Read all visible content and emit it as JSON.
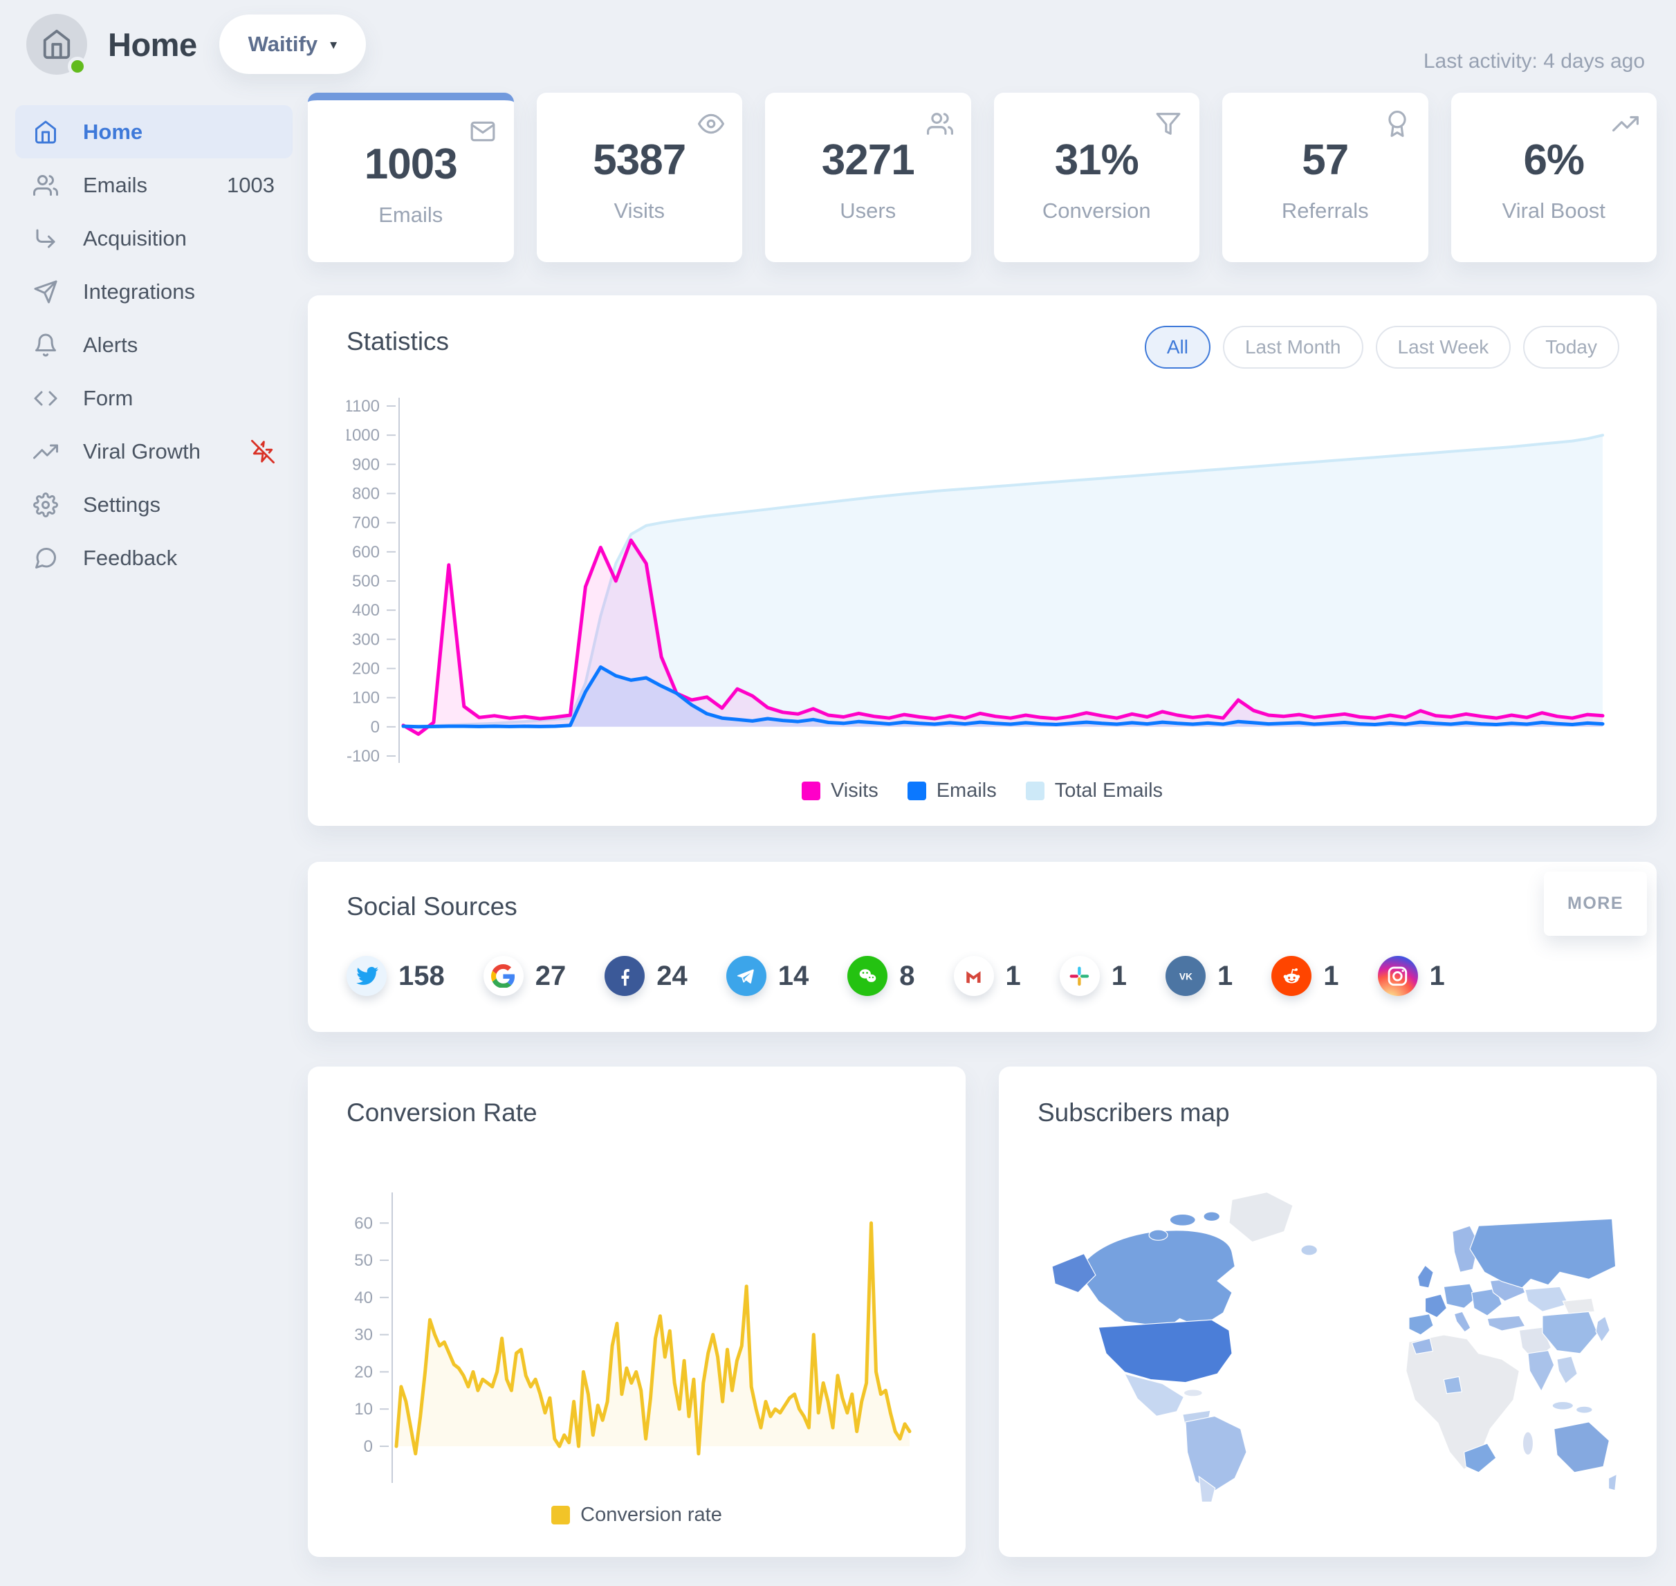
{
  "header": {
    "title": "Home",
    "workspace": "Waitify",
    "caret": "▾",
    "last_activity": "Last activity: 4 days ago"
  },
  "sidebar": {
    "items": [
      {
        "id": "home",
        "icon": "home",
        "label": "Home",
        "active": true
      },
      {
        "id": "emails",
        "icon": "users",
        "label": "Emails",
        "badge": "1003"
      },
      {
        "id": "acquisition",
        "icon": "corner-down-right",
        "label": "Acquisition"
      },
      {
        "id": "integrations",
        "icon": "send",
        "label": "Integrations"
      },
      {
        "id": "alerts",
        "icon": "bell",
        "label": "Alerts"
      },
      {
        "id": "form",
        "icon": "code",
        "label": "Form"
      },
      {
        "id": "viral-growth",
        "icon": "trending-up",
        "label": "Viral Growth",
        "alert_icon": "zap-off"
      },
      {
        "id": "settings",
        "icon": "settings",
        "label": "Settings"
      },
      {
        "id": "feedback",
        "icon": "message-circle",
        "label": "Feedback"
      }
    ]
  },
  "stat_cards": [
    {
      "id": "emails",
      "value": "1003",
      "label": "Emails",
      "icon": "mail",
      "highlighted": true
    },
    {
      "id": "visits",
      "value": "5387",
      "label": "Visits",
      "icon": "eye"
    },
    {
      "id": "users",
      "value": "3271",
      "label": "Users",
      "icon": "users"
    },
    {
      "id": "conversion",
      "value": "31%",
      "label": "Conversion",
      "icon": "filter"
    },
    {
      "id": "referrals",
      "value": "57",
      "label": "Referrals",
      "icon": "award"
    },
    {
      "id": "viral-boost",
      "value": "6%",
      "label": "Viral Boost",
      "icon": "trending-up"
    }
  ],
  "statistics": {
    "title": "Statistics",
    "filters": [
      {
        "label": "All",
        "active": true
      },
      {
        "label": "Last Month"
      },
      {
        "label": "Last Week"
      },
      {
        "label": "Today"
      }
    ]
  },
  "chart_data": [
    {
      "type": "area",
      "title": "Statistics",
      "xlabel": "",
      "ylabel": "",
      "ylim": [
        -100,
        1100
      ],
      "yticks": [
        1100,
        1000,
        900,
        800,
        700,
        600,
        500,
        400,
        300,
        200,
        100,
        0,
        -100
      ],
      "grid": false,
      "legend_position": "bottom",
      "series": [
        {
          "name": "Visits",
          "color": "#ff00c8",
          "fill": "rgba(255,0,200,0.09)",
          "z": 1,
          "width": 5,
          "values": [
            5,
            -25,
            15,
            555,
            70,
            32,
            38,
            30,
            35,
            28,
            33,
            40,
            480,
            615,
            500,
            640,
            560,
            240,
            115,
            92,
            102,
            64,
            130,
            106,
            66,
            50,
            44,
            62,
            40,
            34,
            46,
            36,
            30,
            42,
            34,
            28,
            38,
            30,
            46,
            36,
            30,
            40,
            32,
            28,
            36,
            48,
            38,
            30,
            44,
            34,
            52,
            40,
            32,
            38,
            30,
            92,
            56,
            40,
            36,
            42,
            32,
            38,
            44,
            34,
            30,
            40,
            32,
            55,
            38,
            34,
            44,
            36,
            30,
            40,
            32,
            48,
            36,
            30,
            42,
            38
          ]
        },
        {
          "name": "Emails",
          "color": "#0b78ff",
          "fill": "rgba(11,120,255,0.12)",
          "z": 2,
          "width": 5,
          "values": [
            2,
            0,
            1,
            2,
            2,
            1,
            2,
            1,
            2,
            1,
            2,
            5,
            120,
            205,
            175,
            160,
            168,
            140,
            115,
            75,
            45,
            30,
            25,
            20,
            28,
            22,
            18,
            25,
            15,
            12,
            18,
            14,
            10,
            16,
            12,
            9,
            14,
            10,
            16,
            12,
            9,
            14,
            10,
            8,
            12,
            16,
            12,
            9,
            14,
            10,
            16,
            12,
            9,
            13,
            9,
            18,
            14,
            10,
            12,
            14,
            9,
            12,
            15,
            10,
            8,
            13,
            9,
            16,
            12,
            9,
            14,
            10,
            8,
            12,
            9,
            15,
            11,
            8,
            13,
            10
          ]
        },
        {
          "name": "Total Emails",
          "color": "#cde9f8",
          "fill": "rgba(205,233,248,0.35)",
          "z": 0,
          "width": 4,
          "values": [
            2,
            3,
            4,
            6,
            8,
            10,
            12,
            15,
            18,
            22,
            26,
            30,
            150,
            380,
            560,
            660,
            690,
            700,
            708,
            715,
            722,
            728,
            734,
            740,
            746,
            752,
            758,
            764,
            770,
            776,
            782,
            788,
            793,
            798,
            803,
            808,
            812,
            816,
            820,
            824,
            828,
            832,
            836,
            840,
            844,
            848,
            852,
            856,
            860,
            864,
            868,
            872,
            876,
            880,
            884,
            888,
            892,
            896,
            900,
            904,
            908,
            912,
            916,
            920,
            924,
            928,
            932,
            936,
            940,
            944,
            948,
            952,
            956,
            960,
            965,
            970,
            975,
            980,
            988,
            1000
          ]
        }
      ]
    },
    {
      "type": "line",
      "title": "Conversion Rate",
      "xlabel": "",
      "ylabel": "",
      "ylim": [
        -8,
        66
      ],
      "yticks": [
        60,
        50,
        40,
        30,
        20,
        10,
        0
      ],
      "grid": false,
      "legend_position": "bottom",
      "series": [
        {
          "name": "Conversion rate",
          "color": "#f2c428",
          "fill": "rgba(242,196,40,0.08)",
          "z": 0,
          "width": 5,
          "values": [
            0,
            16,
            12,
            5,
            -2,
            8,
            20,
            34,
            30,
            27,
            28,
            25,
            22,
            21,
            19,
            16,
            20,
            15,
            18,
            17,
            16,
            20,
            29,
            18,
            15,
            25,
            26,
            19,
            16,
            18,
            14,
            9,
            13,
            2,
            0,
            3,
            1,
            12,
            0,
            20,
            14,
            3,
            11,
            7,
            12,
            27,
            33,
            14,
            21,
            17,
            20,
            15,
            2,
            13,
            29,
            35,
            24,
            31,
            17,
            10,
            23,
            8,
            18,
            -2,
            17,
            25,
            30,
            24,
            12,
            26,
            15,
            23,
            27,
            43,
            16,
            10,
            5,
            12,
            8,
            10,
            9,
            11,
            13,
            14,
            10,
            8,
            5,
            30,
            9,
            17,
            12,
            5,
            19,
            13,
            9,
            14,
            4,
            12,
            17,
            60,
            20,
            14,
            15,
            9,
            4,
            2,
            6,
            4
          ]
        }
      ]
    }
  ],
  "social": {
    "title": "Social Sources",
    "more_label": "MORE",
    "sources": [
      {
        "name": "twitter",
        "count": "158"
      },
      {
        "name": "google",
        "count": "27"
      },
      {
        "name": "facebook",
        "count": "24"
      },
      {
        "name": "telegram",
        "count": "14"
      },
      {
        "name": "wechat",
        "count": "8"
      },
      {
        "name": "gmail",
        "count": "1"
      },
      {
        "name": "slack",
        "count": "1"
      },
      {
        "name": "vk",
        "count": "1"
      },
      {
        "name": "reddit",
        "count": "1"
      },
      {
        "name": "instagram",
        "count": "1"
      }
    ]
  },
  "conversion": {
    "title": "Conversion Rate"
  },
  "map": {
    "title": "Subscribers map",
    "region_colors": {
      "greenland": "#e6e9ee",
      "iceland": "#bcd0ee",
      "canada": "#76a1df",
      "arctic-1": "#76a1df",
      "arctic-2": "#76a1df",
      "arctic-3": "#76a1df",
      "alaska": "#5d89d8",
      "usa": "#4b7ed8",
      "mexico": "#c6d7f1",
      "cuba": "#dfe6f2",
      "colombia": "#c0d2ee",
      "brazil": "#a6c0ea",
      "argentina": "#cbd9f1",
      "uk": "#6f9ade",
      "scandinavia": "#9db9e8",
      "finland": "#c6d7f1",
      "iberia": "#7ea8e2",
      "france": "#6f9ade",
      "central-europe": "#87ade4",
      "italy": "#9db9e8",
      "balkans": "#8fb2e6",
      "ukraine": "#9db9e8",
      "turkey": "#a3bde8",
      "africa": "#e8eaee",
      "morocco": "#9db9e8",
      "nigeria": "#9cbbe8",
      "south-africa": "#7ea8e2",
      "madagascar": "#d5def0",
      "middle-east": "#dfe4ee",
      "russia": "#7aa4e0",
      "kazakhstan": "#c6d7f1",
      "mongolia": "#e8eaee",
      "china": "#9cbbe8",
      "india": "#a9c2ea",
      "se-asia": "#c0d2ee",
      "japan": "#b5cbee",
      "indonesia": "#c6d7f1",
      "australia": "#85a9e0",
      "new-zealand": "#b5cbee"
    }
  },
  "colors": {
    "page_bg": "#edf0f5",
    "card_bg": "#ffffff",
    "accent_blue": "#3e79d9",
    "highlight_bar": "#7199dd",
    "active_item_bg": "#e3eaf7",
    "visits_pink": "#ff00c8",
    "emails_blue": "#0b78ff",
    "total_emails_light": "#cde9f8",
    "conversion_yellow": "#f2c428",
    "alert_red": "#d93025",
    "status_green": "#62bb1d",
    "map_max": "#4b7ed8",
    "map_min": "#e8eaee"
  }
}
